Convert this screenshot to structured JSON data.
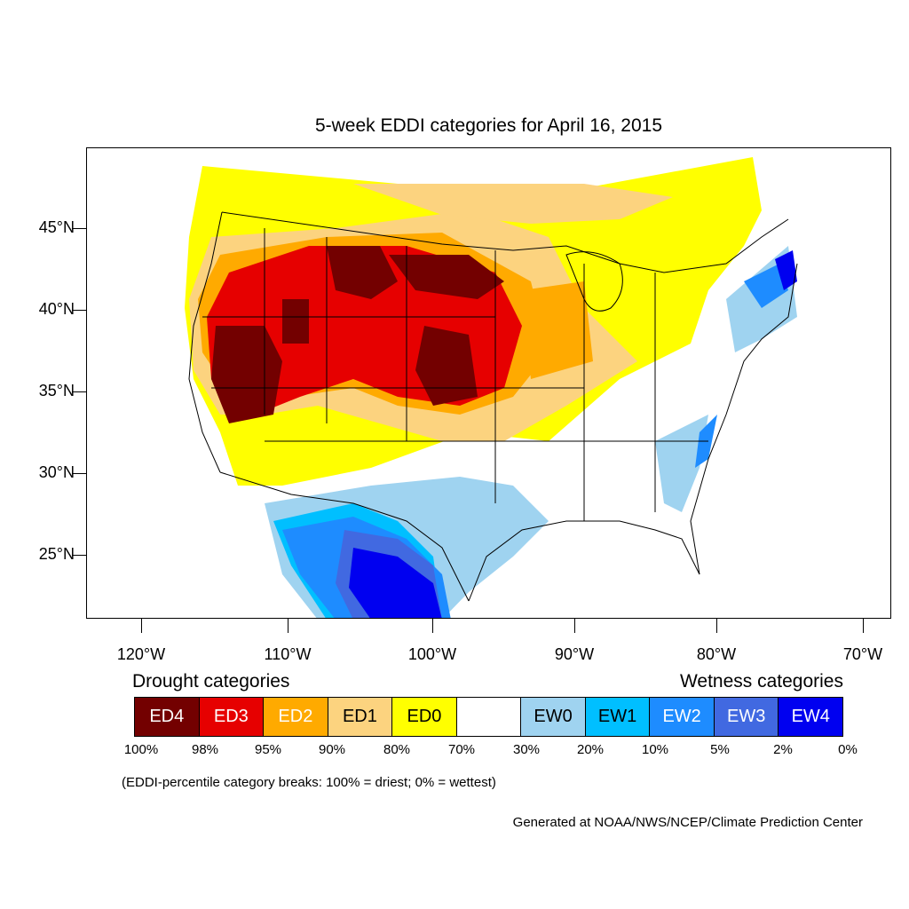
{
  "title": "5-week EDDI categories for April 16, 2015",
  "lat_labels": [
    "45°N",
    "40°N",
    "35°N",
    "30°N",
    "25°N"
  ],
  "lon_labels": [
    "120°W",
    "110°W",
    "100°W",
    "90°W",
    "80°W",
    "70°W"
  ],
  "legend": {
    "drought_heading": "Drought categories",
    "wetness_heading": "Wetness categories",
    "categories": [
      {
        "label": "ED4",
        "color": "#730000",
        "text_color": "#ffffff"
      },
      {
        "label": "ED3",
        "color": "#e60000",
        "text_color": "#ffffff"
      },
      {
        "label": "ED2",
        "color": "#ffaa00",
        "text_color": "#ffffff"
      },
      {
        "label": "ED1",
        "color": "#fcd37f",
        "text_color": "#000000"
      },
      {
        "label": "ED0",
        "color": "#ffff00",
        "text_color": "#000000"
      },
      {
        "label": "",
        "color": "#ffffff",
        "text_color": "#000000"
      },
      {
        "label": "EW0",
        "color": "#9fd3f0",
        "text_color": "#000000"
      },
      {
        "label": "EW1",
        "color": "#00bfff",
        "text_color": "#000000"
      },
      {
        "label": "EW2",
        "color": "#1e8cff",
        "text_color": "#ffffff"
      },
      {
        "label": "EW3",
        "color": "#4169e1",
        "text_color": "#ffffff"
      },
      {
        "label": "EW4",
        "color": "#0000f0",
        "text_color": "#ffffff"
      }
    ],
    "breaks": [
      "100%",
      "98%",
      "95%",
      "90%",
      "80%",
      "70%",
      "30%",
      "20%",
      "10%",
      "5%",
      "2%",
      "0%"
    ]
  },
  "breaks_note": "(EDDI-percentile category breaks: 100% = driest; 0% = wettest)",
  "credit": "Generated at NOAA/NWS/NCEP/Climate Prediction Center"
}
